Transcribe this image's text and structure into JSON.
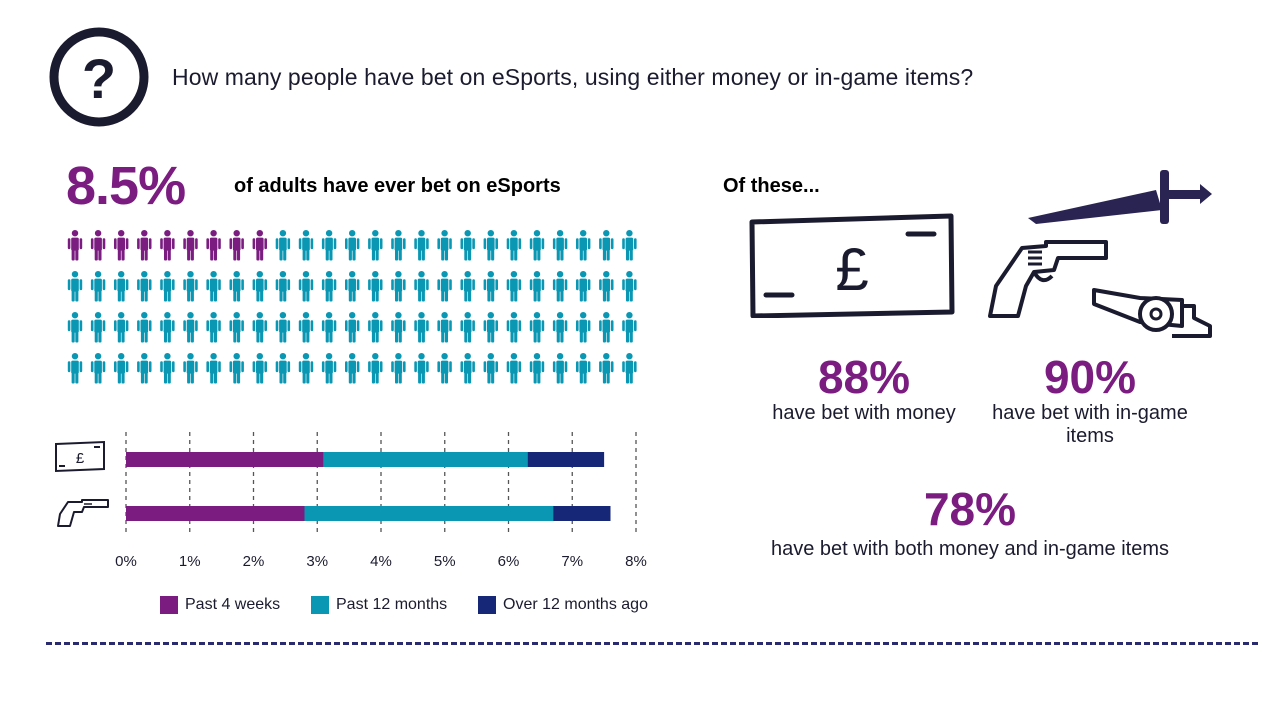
{
  "question": "How many people have bet on eSports, using either money or in-game items?",
  "headline": {
    "value": "8.5%",
    "label": "of adults have ever bet on eSports"
  },
  "people_icons": {
    "highlighted": 9,
    "total": 100,
    "columns": 25,
    "rows": 4
  },
  "colors": {
    "purple": "#7a1c80",
    "teal": "#0a97b3",
    "navy": "#172778",
    "dark": "#1b1b2f"
  },
  "icons": [
    "question-icon",
    "banknote-icon",
    "pistol-icon",
    "sword-icon",
    "cannon-icon",
    "person-icon"
  ],
  "of_these": "Of these...",
  "stats": [
    {
      "value": "88%",
      "label": "have bet with money"
    },
    {
      "value": "90%",
      "label": "have bet with in-game items"
    },
    {
      "value": "78%",
      "label": "have bet with both money and in-game items"
    }
  ],
  "chart_data": {
    "type": "bar",
    "orientation": "horizontal",
    "stacked": true,
    "categories": [
      "money",
      "in-game items"
    ],
    "category_icons": [
      "banknote-icon",
      "pistol-icon"
    ],
    "series": [
      {
        "name": "Past 4 weeks",
        "values": [
          3.1,
          2.8
        ],
        "color": "#7a1c80"
      },
      {
        "name": "Past 12 months",
        "values": [
          3.2,
          3.9
        ],
        "color": "#0a97b3"
      },
      {
        "name": "Over 12 months ago",
        "values": [
          1.2,
          0.9
        ],
        "color": "#172778"
      }
    ],
    "xlim": [
      0,
      8
    ],
    "xticks": [
      "0%",
      "1%",
      "2%",
      "3%",
      "4%",
      "5%",
      "6%",
      "7%",
      "8%"
    ],
    "grid": true,
    "legend": "bottom"
  }
}
